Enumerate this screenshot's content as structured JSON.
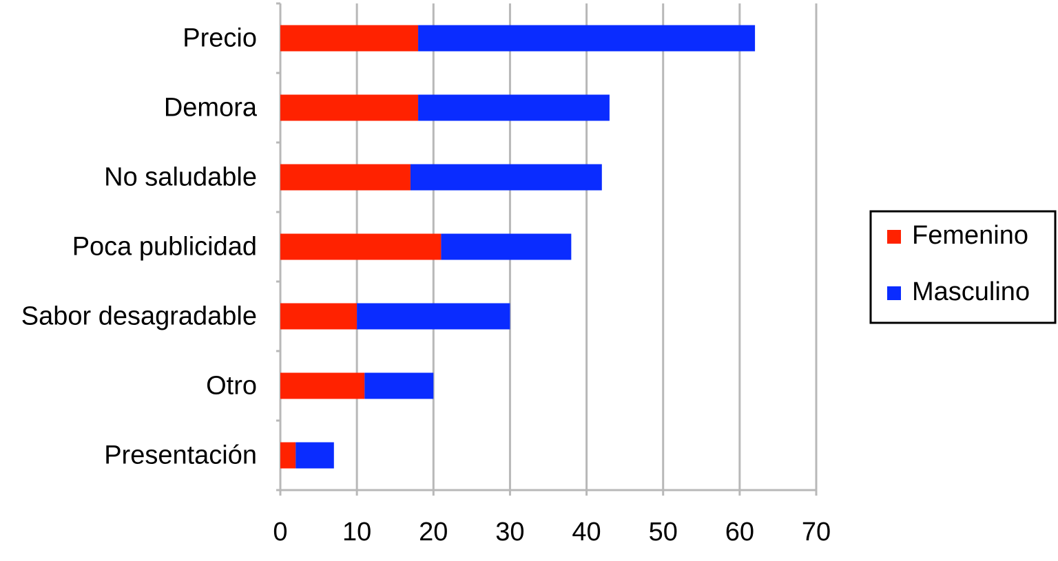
{
  "chart_data": {
    "type": "stacked-barh",
    "categories": [
      "Precio",
      "Demora",
      "No saludable",
      "Poca publicidad",
      "Sabor desagradable",
      "Otro",
      "Presentación"
    ],
    "series": [
      {
        "name": "Femenino",
        "color": "#ff2200",
        "values": [
          18,
          18,
          17,
          21,
          10,
          11,
          2
        ]
      },
      {
        "name": "Masculino",
        "color": "#0a2cff",
        "values": [
          44,
          25,
          25,
          17,
          20,
          9,
          5
        ]
      }
    ],
    "xlim": [
      0,
      70
    ],
    "xticks": [
      0,
      10,
      20,
      30,
      40,
      50,
      60,
      70
    ],
    "grid": true,
    "legend": "right"
  }
}
